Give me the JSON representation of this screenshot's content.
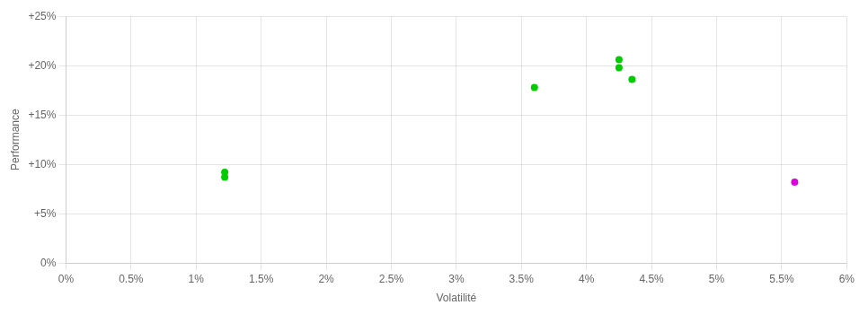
{
  "chart_data": {
    "type": "scatter",
    "xlabel": "Volatilité",
    "ylabel": "Performance",
    "series": [
      {
        "color": "#00cc00",
        "x": [
          0.0122,
          0.0122,
          0.036,
          0.0425,
          0.0425,
          0.0435
        ],
        "values": [
          0.087,
          0.092,
          0.178,
          0.198,
          0.206,
          0.186
        ]
      },
      {
        "color": "#dd00dd",
        "x": [
          0.056
        ],
        "values": [
          0.082
        ]
      }
    ],
    "xlim": [
      0.0,
      0.06
    ],
    "ylim": [
      0.0,
      0.25
    ],
    "xticks": [
      {
        "value": 0.0,
        "label": "0%"
      },
      {
        "value": 0.005,
        "label": "0.5%"
      },
      {
        "value": 0.01,
        "label": "1%"
      },
      {
        "value": 0.015,
        "label": "1.5%"
      },
      {
        "value": 0.02,
        "label": "2%"
      },
      {
        "value": 0.025,
        "label": "2.5%"
      },
      {
        "value": 0.03,
        "label": "3%"
      },
      {
        "value": 0.035,
        "label": "3.5%"
      },
      {
        "value": 0.04,
        "label": "4%"
      },
      {
        "value": 0.045,
        "label": "4.5%"
      },
      {
        "value": 0.05,
        "label": "5%"
      },
      {
        "value": 0.055,
        "label": "5.5%"
      },
      {
        "value": 0.06,
        "label": "6%"
      }
    ],
    "yticks": [
      {
        "value": 0.0,
        "label": "0%"
      },
      {
        "value": 0.05,
        "label": "+5%"
      },
      {
        "value": 0.1,
        "label": "+10%"
      },
      {
        "value": 0.15,
        "label": "+15%"
      },
      {
        "value": 0.2,
        "label": "+20%"
      },
      {
        "value": 0.25,
        "label": "+25%"
      }
    ],
    "grid": true
  }
}
